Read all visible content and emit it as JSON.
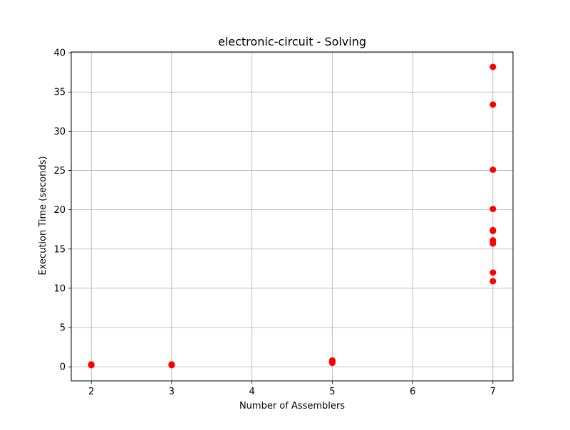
{
  "chart_data": {
    "type": "scatter",
    "title": "electronic-circuit - Solving",
    "xlabel": "Number of Assemblers",
    "ylabel": "Execution Time (seconds)",
    "xlim": [
      1.75,
      7.25
    ],
    "ylim": [
      -1.8,
      40.1
    ],
    "xticks": [
      2,
      3,
      4,
      5,
      6,
      7
    ],
    "yticks": [
      0,
      5,
      10,
      15,
      20,
      25,
      30,
      35,
      40
    ],
    "grid": true,
    "point_color": "#ff0000",
    "points": [
      {
        "x": 2,
        "y": 0.2
      },
      {
        "x": 2,
        "y": 0.25
      },
      {
        "x": 2,
        "y": 0.3
      },
      {
        "x": 3,
        "y": 0.2
      },
      {
        "x": 3,
        "y": 0.25
      },
      {
        "x": 3,
        "y": 0.3
      },
      {
        "x": 5,
        "y": 0.5
      },
      {
        "x": 5,
        "y": 0.6
      },
      {
        "x": 5,
        "y": 0.7
      },
      {
        "x": 5,
        "y": 0.8
      },
      {
        "x": 7,
        "y": 38.2
      },
      {
        "x": 7,
        "y": 33.4
      },
      {
        "x": 7,
        "y": 25.1
      },
      {
        "x": 7,
        "y": 20.1
      },
      {
        "x": 7,
        "y": 17.3
      },
      {
        "x": 7,
        "y": 17.4
      },
      {
        "x": 7,
        "y": 16.1
      },
      {
        "x": 7,
        "y": 15.7
      },
      {
        "x": 7,
        "y": 12.0
      },
      {
        "x": 7,
        "y": 10.9
      }
    ]
  }
}
